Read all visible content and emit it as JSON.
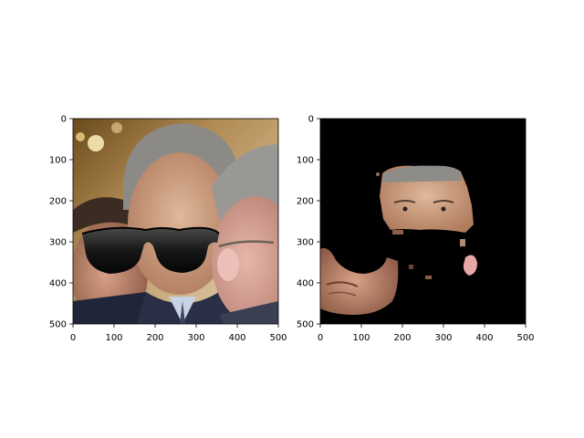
{
  "chart_data": [
    {
      "type": "image",
      "image": "original photo of three men with black sunglasses overlay on the center face",
      "xlim": [
        0,
        500
      ],
      "ylim": [
        500,
        0
      ],
      "xticks": [
        0,
        100,
        200,
        300,
        400,
        500
      ],
      "yticks": [
        0,
        100,
        200,
        300,
        400,
        500
      ],
      "grid": false,
      "colors": {
        "background_skin": "#c9a17a",
        "hair": "#7d7b78",
        "suit": "#2a2f45",
        "shirt": "#b9c9dd",
        "glasses": "#0d0d0d"
      }
    },
    {
      "type": "image",
      "image": "segmented faces on black background with glasses region removed",
      "xlim": [
        0,
        500
      ],
      "ylim": [
        500,
        0
      ],
      "xticks": [
        0,
        100,
        200,
        300,
        400,
        500
      ],
      "yticks": [
        0,
        100,
        200,
        300,
        400,
        500
      ],
      "grid": false,
      "colors": {
        "mask_background": "#000000",
        "skin": "#c89878",
        "cheek": "#e8a6a6"
      }
    }
  ]
}
